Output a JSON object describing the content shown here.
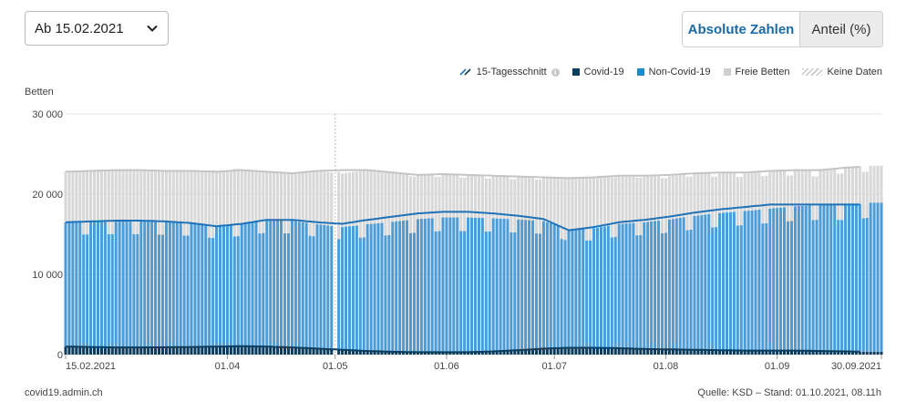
{
  "controls": {
    "date_select_label": "Ab 15.02.2021",
    "toggle_absolute": "Absolute Zahlen",
    "toggle_share": "Anteil (%)"
  },
  "legend": {
    "avg_label": "15-Tagesschnitt",
    "info_icon_text": "i",
    "covid_label": "Covid-19",
    "noncovid_label": "Non-Covid-19",
    "free_label": "Freie Betten",
    "nodata_label": "Keine Daten"
  },
  "colors": {
    "covid": "#0b3d5e",
    "noncovid": "#4d9cd6",
    "noncovid_line": "#1f72b8",
    "free": "#d8d8d8",
    "free_line": "#c4c4c4",
    "grid": "#e3e3e3"
  },
  "footer": {
    "source_site": "covid19.admin.ch",
    "source_note": "Quelle: KSD – Stand: 01.10.2021, 08.11h"
  },
  "chart_data": {
    "type": "bar",
    "ylabel": "Betten",
    "ylim": [
      0,
      30000
    ],
    "yticks": [
      0,
      10000,
      20000,
      30000
    ],
    "ytick_labels": [
      "0",
      "10 000",
      "20 000",
      "30 000"
    ],
    "x_start": "2021-02-15",
    "x_end": "2021-09-30",
    "xticks": [
      {
        "date": "2021-02-15",
        "label": "15.02.2021"
      },
      {
        "date": "2021-04-01",
        "label": "01.04"
      },
      {
        "date": "2021-05-01",
        "label": "01.05"
      },
      {
        "date": "2021-06-01",
        "label": "01.06"
      },
      {
        "date": "2021-07-01",
        "label": "01.07"
      },
      {
        "date": "2021-08-01",
        "label": "01.08"
      },
      {
        "date": "2021-09-01",
        "label": "01.09"
      },
      {
        "date": "2021-09-30",
        "label": "30.09.2021"
      }
    ],
    "no_data_dates": [
      "2021-05-01"
    ],
    "stacked": true,
    "series": [
      {
        "name": "Covid-19",
        "key": "covid",
        "weekly_values": [
          1000,
          950,
          900,
          900,
          920,
          950,
          1000,
          1050,
          1000,
          900,
          750,
          600,
          450,
          350,
          300,
          300,
          300,
          400,
          550,
          750,
          850,
          850,
          800,
          700,
          650,
          600,
          550,
          500,
          500,
          500,
          450,
          400,
          350
        ]
      },
      {
        "name": "Non-Covid-19",
        "key": "noncovid",
        "weekly_values": [
          15500,
          15600,
          15700,
          15700,
          15600,
          15400,
          15000,
          15300,
          15800,
          15800,
          15500,
          15300,
          15800,
          16200,
          16600,
          16800,
          16800,
          16600,
          16300,
          15900,
          14800,
          14900,
          15500,
          15800,
          16200,
          16700,
          17100,
          17400,
          17700,
          18000,
          18200,
          18200,
          18600
        ]
      },
      {
        "name": "Freie Betten",
        "key": "free",
        "weekly_values": [
          6300,
          6400,
          6400,
          6400,
          6300,
          6500,
          6800,
          6700,
          6000,
          5900,
          6600,
          6700,
          6700,
          6100,
          5500,
          5400,
          5300,
          5300,
          5300,
          5400,
          6300,
          6300,
          5900,
          5700,
          5400,
          5300,
          5000,
          4800,
          4700,
          4500,
          4300,
          4700,
          4600
        ]
      },
      {
        "name": "15-Tagesschnitt Non-Covid-19",
        "key": "avg_noncovid",
        "weekly_values": [
          16500,
          16600,
          16700,
          16700,
          16600,
          16400,
          16000,
          16300,
          16800,
          16800,
          16500,
          16300,
          16800,
          17200,
          17600,
          17800,
          17800,
          17600,
          17300,
          16900,
          15500,
          15900,
          16500,
          16800,
          17200,
          17700,
          18100,
          18400,
          18700,
          18700,
          18700,
          18700,
          18700
        ]
      },
      {
        "name": "15-Tagesschnitt Freie Betten",
        "key": "avg_total",
        "weekly_values": [
          22800,
          22900,
          23000,
          23000,
          22900,
          22900,
          22800,
          23000,
          22800,
          22600,
          22900,
          23000,
          23000,
          22700,
          22400,
          22500,
          22400,
          22300,
          22200,
          22100,
          22000,
          22100,
          22300,
          22300,
          22400,
          22600,
          22700,
          22700,
          22900,
          23000,
          23000,
          23300,
          23500
        ]
      }
    ]
  }
}
